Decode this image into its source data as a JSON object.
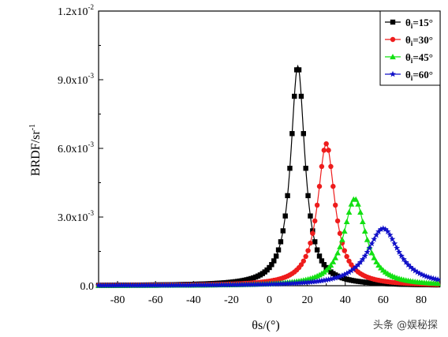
{
  "chart_data": {
    "type": "line",
    "xlabel": "θs/(°)",
    "ylabel": "BRDF/sr",
    "ylabel_superscript": "-1",
    "xlim": [
      -90,
      90
    ],
    "ylim": [
      0,
      0.012
    ],
    "xticks": [
      -80,
      -60,
      -40,
      -20,
      0,
      20,
      40,
      60,
      80
    ],
    "yticks": [
      {
        "value": 0,
        "label": "0.0",
        "exp": ""
      },
      {
        "value": 0.003,
        "label": "3.0x10",
        "exp": "-3"
      },
      {
        "value": 0.006,
        "label": "6.0x10",
        "exp": "-3"
      },
      {
        "value": 0.009,
        "label": "9.0x10",
        "exp": "-3"
      },
      {
        "value": 0.012,
        "label": "1.2x10",
        "exp": "-2"
      }
    ],
    "legend_position": "top-right",
    "grid": false,
    "series": [
      {
        "name": "θi=15°",
        "sub_base": "θ",
        "sub": "i",
        "suffix": "=15°",
        "color": "#000000",
        "marker": "square",
        "peak_x": 15,
        "peak_y": 0.0096,
        "hwhm": 4.5,
        "samples": [
          [
            -60,
            2e-05
          ],
          [
            -40,
            6e-05
          ],
          [
            -20,
            0.0002
          ],
          [
            -10,
            0.0006
          ],
          [
            0,
            0.0016
          ],
          [
            5,
            0.0028
          ],
          [
            10,
            0.006
          ],
          [
            13,
            0.0088
          ],
          [
            15,
            0.0096
          ],
          [
            17,
            0.0088
          ],
          [
            20,
            0.006
          ],
          [
            25,
            0.0028
          ],
          [
            30,
            0.0014
          ],
          [
            40,
            0.0005
          ],
          [
            60,
            0.0001
          ],
          [
            90,
            2e-05
          ]
        ]
      },
      {
        "name": "θi=30°",
        "sub_base": "θ",
        "sub": "i",
        "suffix": "=30°",
        "color": "#ee1c1c",
        "marker": "circle",
        "peak_x": 30,
        "peak_y": 0.0062,
        "hwhm": 5.5,
        "samples": [
          [
            -60,
            1e-05
          ],
          [
            -20,
            8e-05
          ],
          [
            0,
            0.0003
          ],
          [
            10,
            0.0008
          ],
          [
            20,
            0.0025
          ],
          [
            25,
            0.0042
          ],
          [
            30,
            0.0062
          ],
          [
            35,
            0.0042
          ],
          [
            40,
            0.0025
          ],
          [
            50,
            0.0008
          ],
          [
            60,
            0.0003
          ],
          [
            90,
            3e-05
          ]
        ]
      },
      {
        "name": "θi=45°",
        "sub_base": "θ",
        "sub": "i",
        "suffix": "=45°",
        "color": "#12e012",
        "marker": "triangle",
        "peak_x": 45,
        "peak_y": 0.0038,
        "hwhm": 7,
        "samples": [
          [
            -60,
            1e-05
          ],
          [
            0,
            0.0001
          ],
          [
            20,
            0.0005
          ],
          [
            30,
            0.0012
          ],
          [
            38,
            0.0026
          ],
          [
            45,
            0.0038
          ],
          [
            52,
            0.0026
          ],
          [
            60,
            0.0012
          ],
          [
            70,
            0.0005
          ],
          [
            90,
            0.0001
          ]
        ]
      },
      {
        "name": "θi=60°",
        "sub_base": "θ",
        "sub": "i",
        "suffix": "=60°",
        "color": "#1010c8",
        "marker": "star",
        "peak_x": 60,
        "peak_y": 0.0025,
        "hwhm": 10,
        "samples": [
          [
            -60,
            1e-05
          ],
          [
            0,
            0.0001
          ],
          [
            30,
            0.0005
          ],
          [
            45,
            0.0012
          ],
          [
            52,
            0.0019
          ],
          [
            60,
            0.0025
          ],
          [
            68,
            0.0019
          ],
          [
            75,
            0.0012
          ],
          [
            85,
            0.0006
          ],
          [
            90,
            0.0004
          ]
        ]
      }
    ]
  },
  "watermark": "头条 @娱秘探"
}
